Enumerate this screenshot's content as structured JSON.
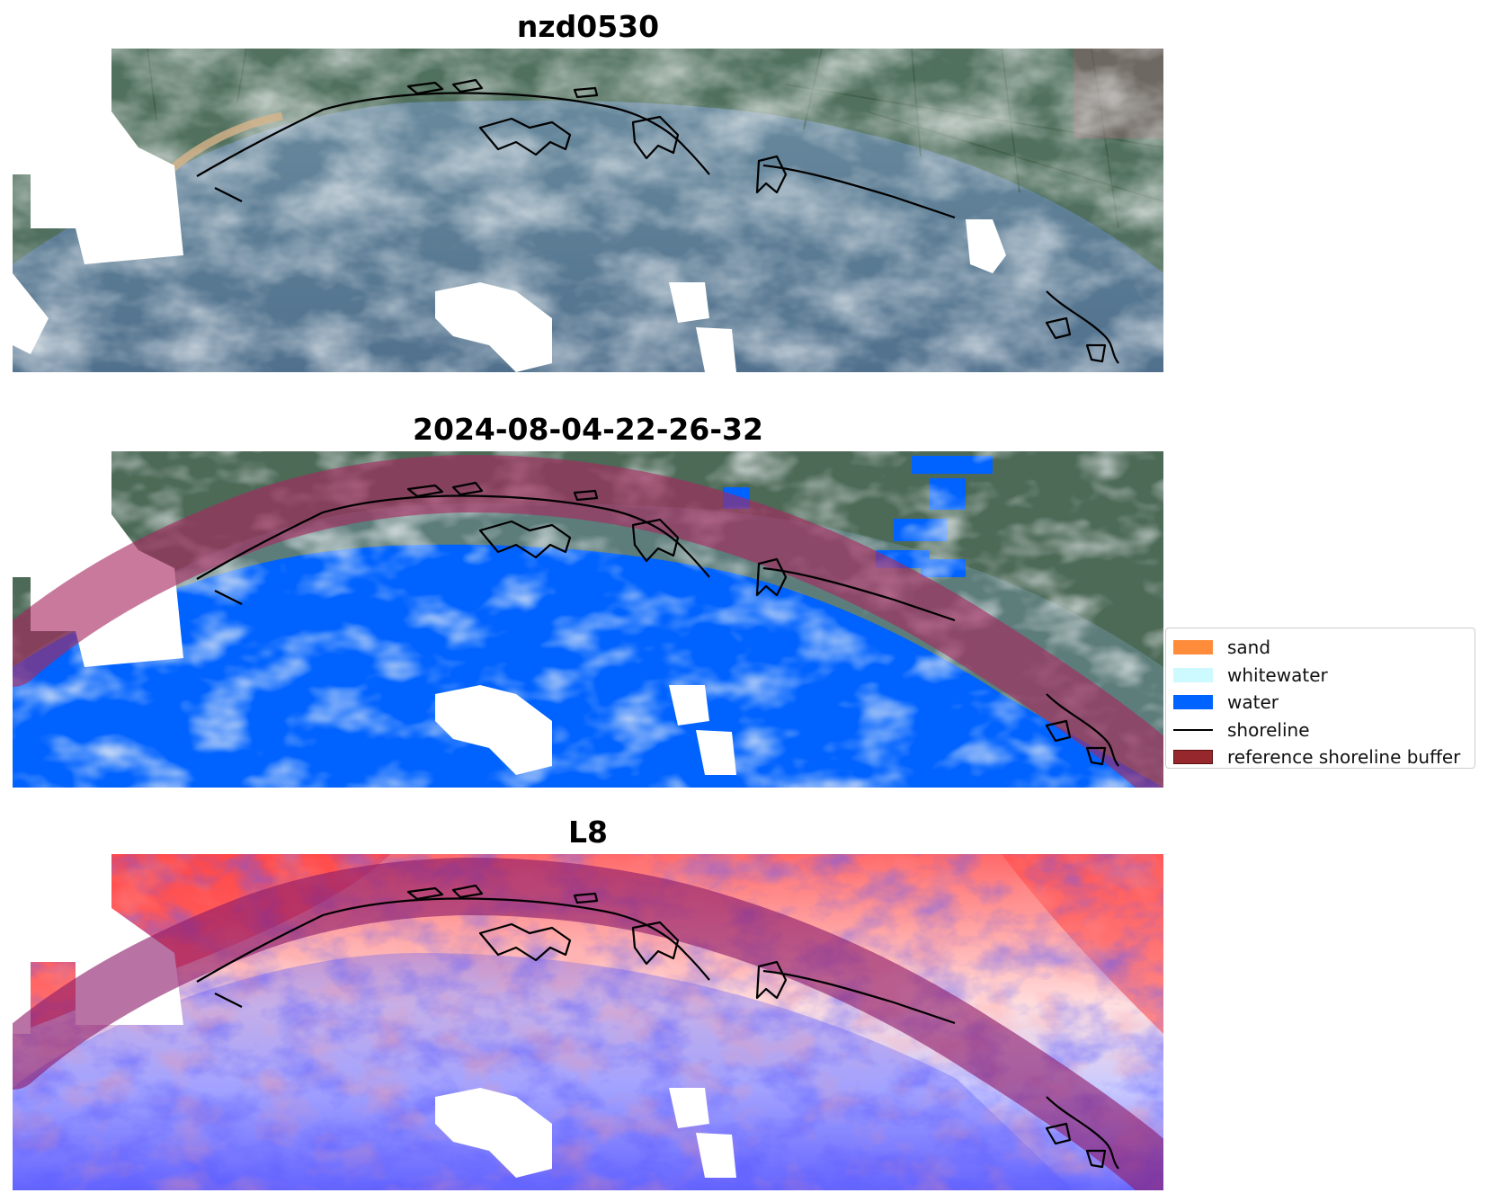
{
  "panels": [
    {
      "title": "nzd0530",
      "mode": "rgb"
    },
    {
      "title": "2024-08-04-22-26-32",
      "mode": "classified"
    },
    {
      "title": "L8",
      "mode": "index"
    }
  ],
  "legend": [
    {
      "label": "sand",
      "color": "#ff8c3a",
      "kind": "patch"
    },
    {
      "label": "whitewater",
      "color": "#ccfaff",
      "kind": "patch"
    },
    {
      "label": "water",
      "color": "#0062ff",
      "kind": "patch"
    },
    {
      "label": "shoreline",
      "color": "#000000",
      "kind": "line"
    },
    {
      "label": "reference shoreline buffer",
      "color": "#96282d",
      "kind": "patch"
    }
  ]
}
